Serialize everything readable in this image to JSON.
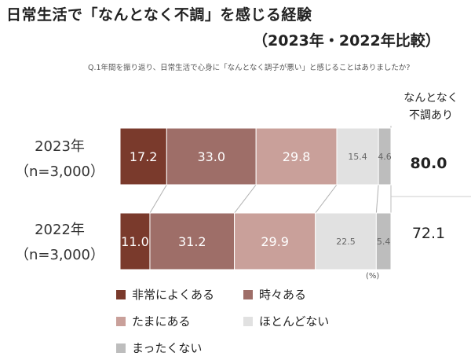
{
  "title_line1": "日常生活で「なんとなく不調」を感じる経験",
  "title_line2": "（2023年・2022年比較）",
  "question": "Q.1年間を振り返り、日常生活で心身に「なんとなく調子が悪い」と感じることはありましたか?",
  "side_header_line1": "なんとなく",
  "side_header_line2": "不調あり",
  "percent_unit": "(%)",
  "colors": {
    "c1": "#7a3a2c",
    "c2": "#9e6e68",
    "c3": "#c9a09a",
    "c4": "#e1e1e1",
    "c5": "#bdbdbd"
  },
  "chart_data": {
    "type": "bar",
    "orientation": "horizontal-stacked-100",
    "categories": [
      {
        "year": "2023年",
        "n": "（n=3,000）",
        "total": "80.0"
      },
      {
        "year": "2022年",
        "n": "（n=3,000）",
        "total": "72.1"
      }
    ],
    "series": [
      {
        "name": "非常によくある",
        "values": [
          17.2,
          11.0
        ]
      },
      {
        "name": "時々ある",
        "values": [
          33.0,
          31.2
        ]
      },
      {
        "name": "たまにある",
        "values": [
          29.8,
          29.9
        ]
      },
      {
        "name": "ほとんどない",
        "values": [
          15.4,
          22.5
        ]
      },
      {
        "name": "まったくない",
        "values": [
          4.6,
          5.4
        ]
      }
    ],
    "xlim": [
      0,
      100
    ]
  }
}
